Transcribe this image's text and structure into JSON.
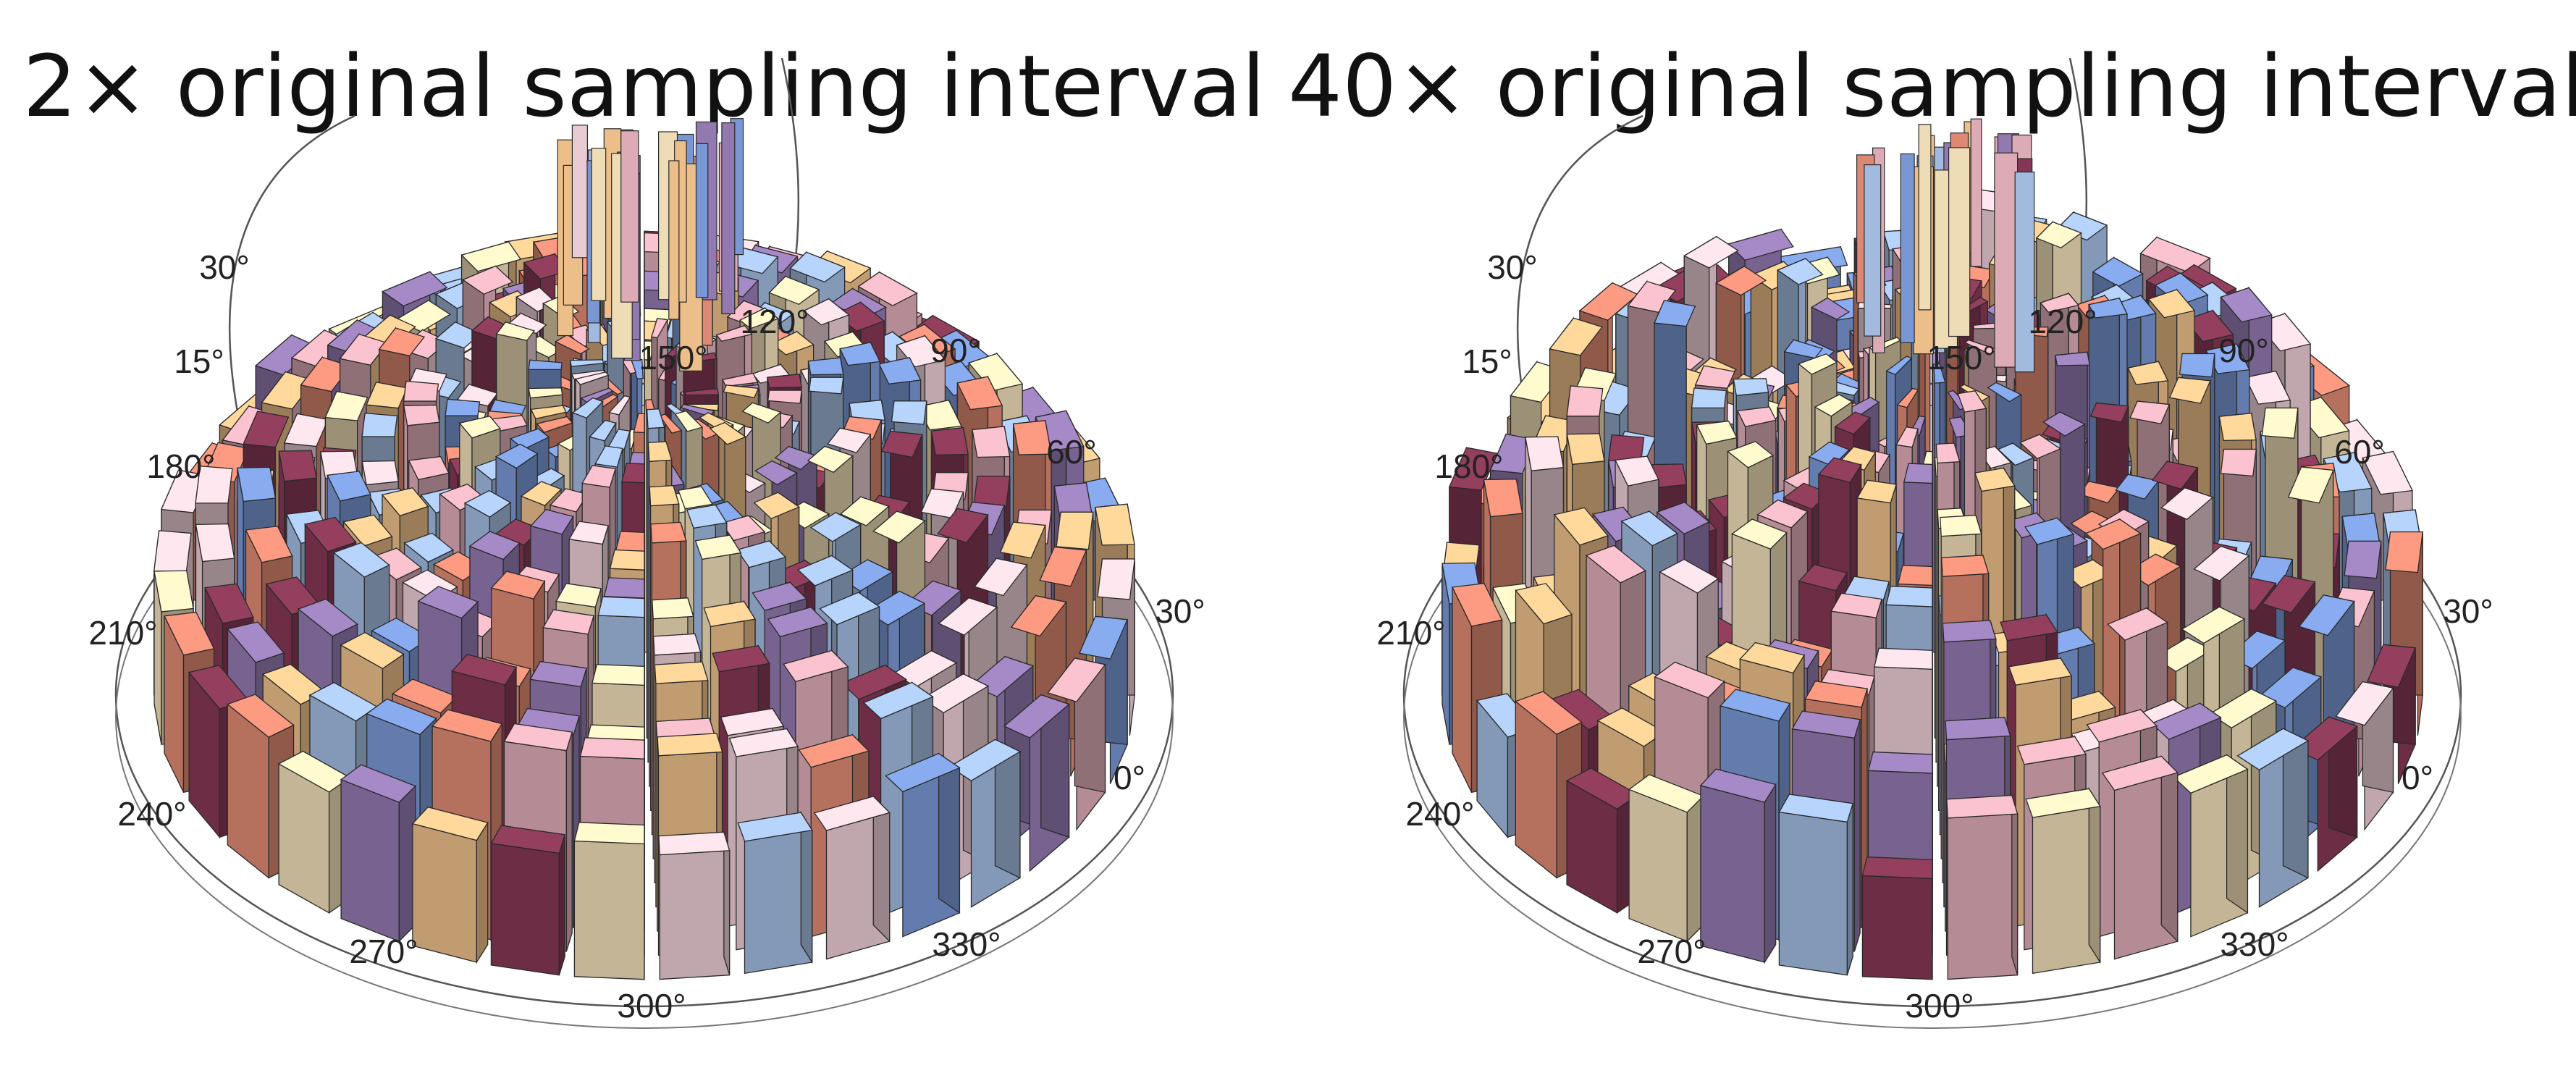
{
  "chart_data": [
    {
      "type": "polar-bar3d",
      "title": "2× original sampling interval",
      "angle_ticks": [
        "0°",
        "30°",
        "60°",
        "90°",
        "120°",
        "150°",
        "180°",
        "210°",
        "240°",
        "270°",
        "300°",
        "330°"
      ],
      "elevation_ticks": [
        "15°",
        "30°"
      ],
      "rings": 12,
      "sectors": 36,
      "center_spike": true,
      "noise": 0.25
    },
    {
      "type": "polar-bar3d",
      "title": "40× original sampling interval",
      "angle_ticks": [
        "0°",
        "30°",
        "60°",
        "90°",
        "120°",
        "150°",
        "180°",
        "210°",
        "240°",
        "270°",
        "300°",
        "330°"
      ],
      "elevation_ticks": [
        "15°",
        "30°"
      ],
      "rings": 12,
      "sectors": 36,
      "center_spike": true,
      "noise": 0.6
    }
  ],
  "colors": {
    "peach": "#f8c890",
    "cream": "#fbe8c0",
    "light_blue": "#a9c4ea",
    "blue": "#7f9fde",
    "pink": "#e8b4c0",
    "light_pink": "#f5d6de",
    "maroon": "#8a3a58",
    "purple": "#9a7fb8",
    "salmon": "#e98f78"
  }
}
